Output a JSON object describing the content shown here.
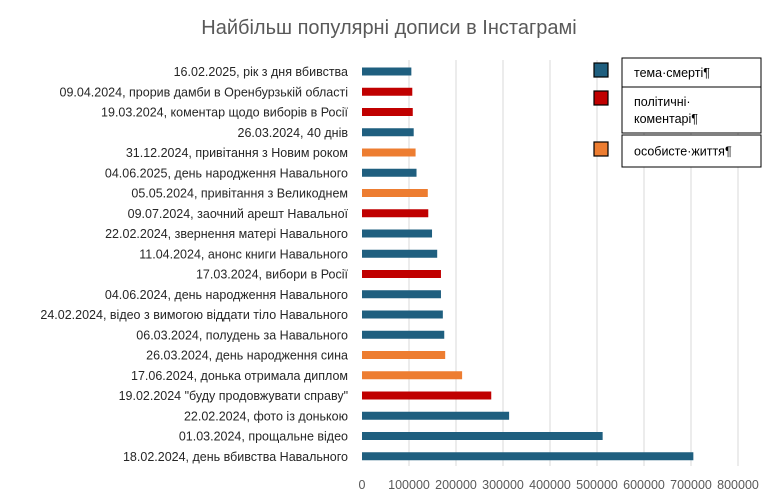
{
  "chart_data": {
    "type": "bar",
    "orientation": "horizontal",
    "title": "Найбільш популярні дописи в Інстаграмі",
    "xlim": [
      0,
      800000
    ],
    "xticks": [
      0,
      100000,
      200000,
      300000,
      400000,
      500000,
      600000,
      700000,
      800000
    ],
    "tick_labels": [
      "0",
      "100000",
      "200000",
      "300000",
      "400000",
      "500000",
      "600000",
      "700000",
      "800000"
    ],
    "grid": true,
    "legend_position": "top-right",
    "colors": {
      "death": "#1F5F7F",
      "political": "#C00000",
      "personal": "#ED7D31"
    },
    "legend": [
      {
        "key": "death",
        "label_lines": [
          "тема·смерті¶"
        ]
      },
      {
        "key": "political",
        "label_lines": [
          "політичні·",
          "коментарі¶"
        ]
      },
      {
        "key": "personal",
        "label_lines": [
          "особисте·життя¶"
        ]
      }
    ],
    "items": [
      {
        "label": "16.02.2025, рік з дня вбивства",
        "value": 105000,
        "category": "death"
      },
      {
        "label": "09.04.2024, прорив дамби в Оренбурзькій області",
        "value": 107000,
        "category": "political"
      },
      {
        "label": "19.03.2024, коментар щодо виборів в Росії",
        "value": 108000,
        "category": "political"
      },
      {
        "label": "26.03.2024, 40 днів",
        "value": 110000,
        "category": "death"
      },
      {
        "label": "31.12.2024, привітання з Новим роком",
        "value": 114000,
        "category": "personal"
      },
      {
        "label": "04.06.2025, день народження Навального",
        "value": 116000,
        "category": "death"
      },
      {
        "label": "05.05.2024, привітання з Великоднем",
        "value": 140000,
        "category": "personal"
      },
      {
        "label": "09.07.2024, заочний арешт Навальної",
        "value": 141000,
        "category": "political"
      },
      {
        "label": "22.02.2024, звернення матері Навального",
        "value": 149000,
        "category": "death"
      },
      {
        "label": "11.04.2024, анонс книги Навального",
        "value": 160000,
        "category": "death"
      },
      {
        "label": "17.03.2024, вибори в Росії",
        "value": 168000,
        "category": "political"
      },
      {
        "label": "04.06.2024, день народження Навального",
        "value": 168000,
        "category": "death"
      },
      {
        "label": "24.02.2024, відео з вимогою віддати тіло Навального",
        "value": 172000,
        "category": "death"
      },
      {
        "label": "06.03.2024, полудень за Навального",
        "value": 175000,
        "category": "death"
      },
      {
        "label": "26.03.2024, день народження сина",
        "value": 177000,
        "category": "personal"
      },
      {
        "label": "17.06.2024, донька отримала диплом",
        "value": 213000,
        "category": "personal"
      },
      {
        "label": "19.02.2024 \"буду продовжувати справу\"",
        "value": 275000,
        "category": "political"
      },
      {
        "label": "22.02.2024, фото із донькою",
        "value": 313000,
        "category": "death"
      },
      {
        "label": "01.03.2024, прощальне відео",
        "value": 512000,
        "category": "death"
      },
      {
        "label": "18.02.2024, день вбивства Навального",
        "value": 705000,
        "category": "death"
      }
    ]
  }
}
